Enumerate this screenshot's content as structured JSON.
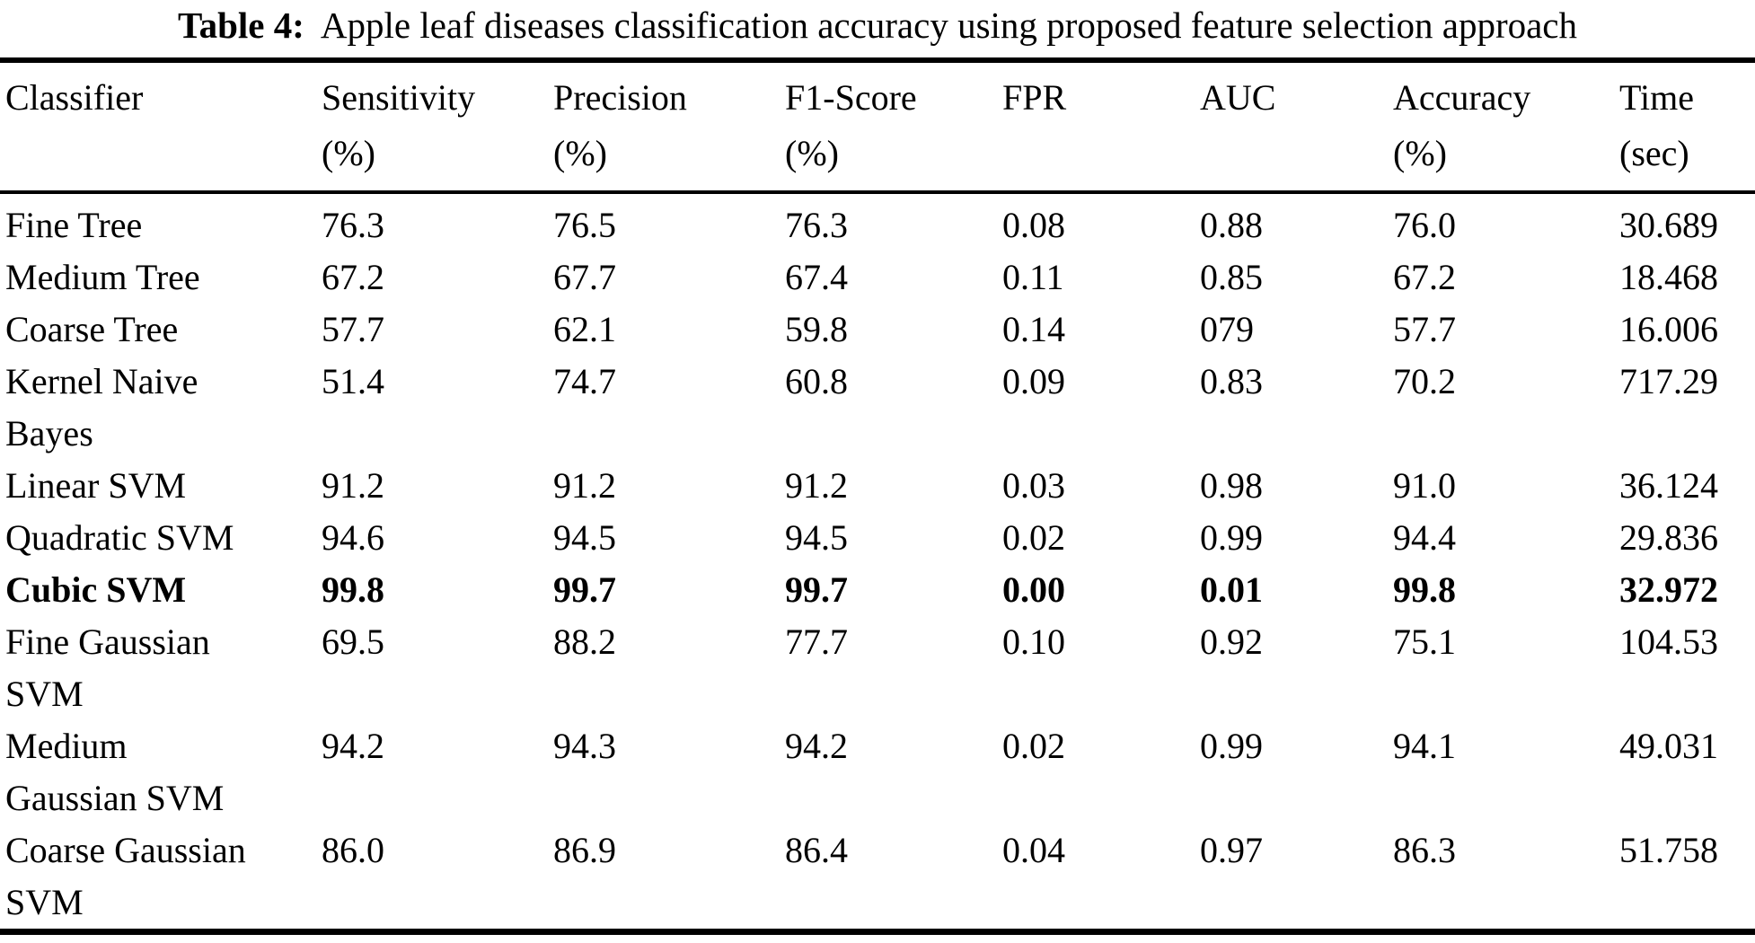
{
  "title": {
    "label": "Table 4:",
    "text": "Apple leaf diseases classification accuracy using proposed feature selection approach"
  },
  "table": {
    "columns": [
      {
        "key": "classifier",
        "header": "Classifier"
      },
      {
        "key": "sensitivity",
        "header": "Sensitivity\n(%)"
      },
      {
        "key": "precision",
        "header": "Precision\n(%)"
      },
      {
        "key": "f1score",
        "header": "F1-Score\n(%)"
      },
      {
        "key": "fpr",
        "header": "FPR"
      },
      {
        "key": "auc",
        "header": "AUC"
      },
      {
        "key": "accuracy",
        "header": "Accuracy\n(%)"
      },
      {
        "key": "time",
        "header": "Time\n(sec)"
      }
    ],
    "rows": [
      {
        "classifier": "Fine Tree",
        "sensitivity": "76.3",
        "precision": "76.5",
        "f1score": "76.3",
        "fpr": "0.08",
        "auc": "0.88",
        "accuracy": "76.0",
        "time": "30.689",
        "bold": false
      },
      {
        "classifier": "Medium Tree",
        "sensitivity": "67.2",
        "precision": "67.7",
        "f1score": "67.4",
        "fpr": "0.11",
        "auc": "0.85",
        "accuracy": "67.2",
        "time": "18.468",
        "bold": false
      },
      {
        "classifier": "Coarse Tree",
        "sensitivity": "57.7",
        "precision": "62.1",
        "f1score": "59.8",
        "fpr": "0.14",
        "auc": "079",
        "accuracy": "57.7",
        "time": "16.006",
        "bold": false
      },
      {
        "classifier": "Kernel Naive\nBayes",
        "sensitivity": "51.4",
        "precision": "74.7",
        "f1score": "60.8",
        "fpr": "0.09",
        "auc": "0.83",
        "accuracy": "70.2",
        "time": "717.29",
        "bold": false
      },
      {
        "classifier": "Linear SVM",
        "sensitivity": "91.2",
        "precision": "91.2",
        "f1score": "91.2",
        "fpr": "0.03",
        "auc": "0.98",
        "accuracy": "91.0",
        "time": "36.124",
        "bold": false
      },
      {
        "classifier": "Quadratic SVM",
        "sensitivity": "94.6",
        "precision": "94.5",
        "f1score": "94.5",
        "fpr": "0.02",
        "auc": "0.99",
        "accuracy": "94.4",
        "time": "29.836",
        "bold": false
      },
      {
        "classifier": "Cubic SVM",
        "sensitivity": "99.8",
        "precision": "99.7",
        "f1score": "99.7",
        "fpr": "0.00",
        "auc": "0.01",
        "accuracy": "99.8",
        "time": "32.972",
        "bold": true
      },
      {
        "classifier": "Fine Gaussian\nSVM",
        "sensitivity": "69.5",
        "precision": "88.2",
        "f1score": "77.7",
        "fpr": "0.10",
        "auc": "0.92",
        "accuracy": "75.1",
        "time": "104.53",
        "bold": false
      },
      {
        "classifier": "Medium\nGaussian SVM",
        "sensitivity": "94.2",
        "precision": "94.3",
        "f1score": "94.2",
        "fpr": "0.02",
        "auc": "0.99",
        "accuracy": "94.1",
        "time": "49.031",
        "bold": false
      },
      {
        "classifier": "Coarse Gaussian\nSVM",
        "sensitivity": "86.0",
        "precision": "86.9",
        "f1score": "86.4",
        "fpr": "0.04",
        "auc": "0.97",
        "accuracy": "86.3",
        "time": "51.758",
        "bold": false
      }
    ]
  },
  "colors": {
    "text": "#000000",
    "background": "#ffffff",
    "rule": "#000000"
  }
}
